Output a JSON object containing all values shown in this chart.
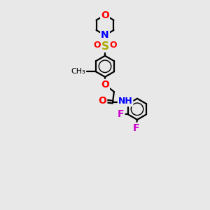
{
  "bg_color": "#e8e8e8",
  "bond_color": "#000000",
  "bond_width": 1.6,
  "atom_colors": {
    "O": "#ff0000",
    "N": "#0000ff",
    "S": "#aaaa00",
    "F": "#cc00cc",
    "C": "#000000"
  },
  "font_size": 10,
  "fig_bg": "#e8e8e8"
}
